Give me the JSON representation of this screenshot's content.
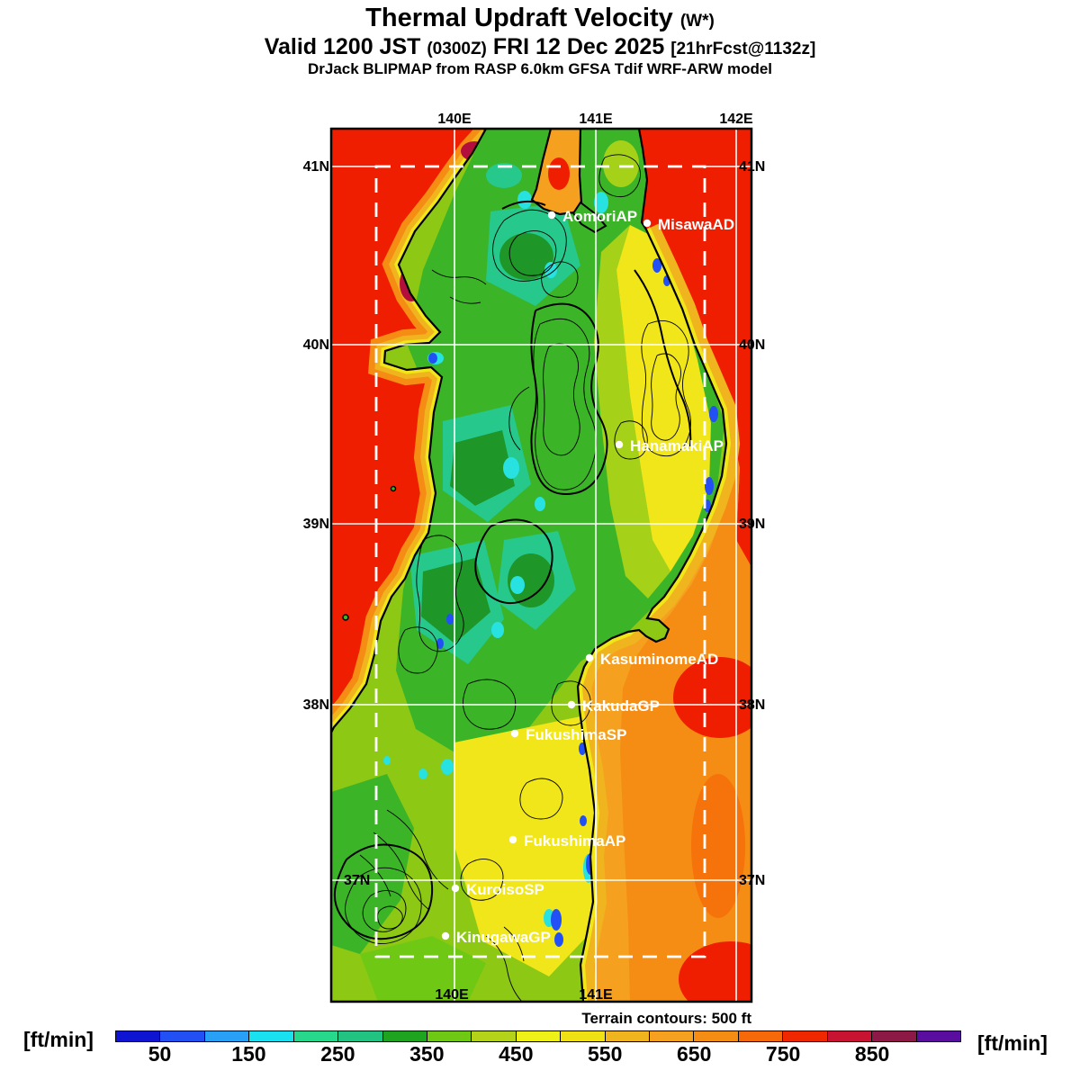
{
  "header": {
    "title": "Thermal Updraft Velocity",
    "title_suffix": "(W*)",
    "valid_prefix": "Valid 1200 JST",
    "valid_zulu": "(0300Z)",
    "valid_date": "FRI 12 Dec 2025",
    "fcst_tag": "[21hrFcst@1132z]",
    "model_line": "DrJack BLIPMAP from RASP 6.0km GFSA Tdif WRF-ARW model"
  },
  "map": {
    "lon_labels_top": [
      "140E",
      "141E",
      "142E"
    ],
    "lon_labels_bottom": [
      "140E",
      "141E"
    ],
    "lat_labels": [
      "41N",
      "40N",
      "39N",
      "38N",
      "37N"
    ],
    "sites": [
      "AomoriAP",
      "MisawaAD",
      "HanamakiAP",
      "KasuminomeAD",
      "KakudaGP",
      "FukushimaSP",
      "FukushimaAP",
      "KuroisoSP",
      "KinugawaGP"
    ],
    "terrain_note": "Terrain contours: 500 ft"
  },
  "colorbar": {
    "unit_left": "[ft/min]",
    "unit_right": "[ft/min]",
    "ticks": [
      "50",
      "150",
      "250",
      "350",
      "450",
      "550",
      "650",
      "750",
      "850"
    ],
    "cell_colors": [
      "#0f14d2",
      "#2350f5",
      "#28a0f5",
      "#19e1f0",
      "#26d78c",
      "#22c382",
      "#1ea41e",
      "#6ec814",
      "#b4d219",
      "#f0f019",
      "#f0e114",
      "#f0b41e",
      "#f5a01e",
      "#f58c14",
      "#f5690a",
      "#f02800",
      "#c81432",
      "#8c1946",
      "#5a0ea0"
    ]
  },
  "colors": {
    "sea_red": "#f01e00",
    "orange_outer": "#f58c14",
    "orange_mid": "#f5a01e",
    "amber": "#f0b41e",
    "coast_yellow": "#f0e619",
    "land_base": "#8cc814",
    "land_green": "#3cb428",
    "land_teal": "#26c88c",
    "land_darkgreen": "#1e9628",
    "cyan_spot": "#28e1e1",
    "blue_spot": "#2350f5",
    "maroon_patch": "#b40f3c",
    "grid_white": "#ffffff"
  }
}
